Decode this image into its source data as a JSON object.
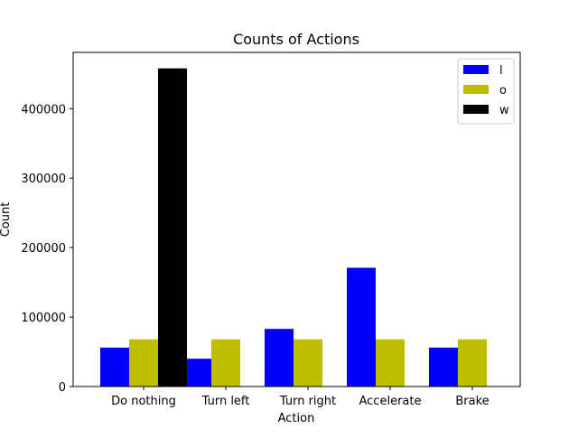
{
  "chart_data": {
    "type": "bar",
    "title": "Counts of Actions",
    "xlabel": "Action",
    "ylabel": "Count",
    "categories": [
      "Do nothing",
      "Turn left",
      "Turn right",
      "Accelerate",
      "Brake"
    ],
    "series": [
      {
        "name": "l",
        "color": "#0000ff",
        "values": [
          56000,
          40000,
          83000,
          171000,
          56000
        ]
      },
      {
        "name": "o",
        "color": "#bfbf00",
        "values": [
          68000,
          68000,
          68000,
          68000,
          68000
        ]
      },
      {
        "name": "w",
        "color": "#000000",
        "values": [
          458000,
          0,
          0,
          0,
          0
        ]
      }
    ],
    "ylim": [
      0,
      481000
    ],
    "yticks": [
      0,
      100000,
      200000,
      300000,
      400000
    ],
    "ytick_labels": [
      "0",
      "100000",
      "200000",
      "300000",
      "400000"
    ],
    "legend_position": "top-right",
    "grid": false
  }
}
